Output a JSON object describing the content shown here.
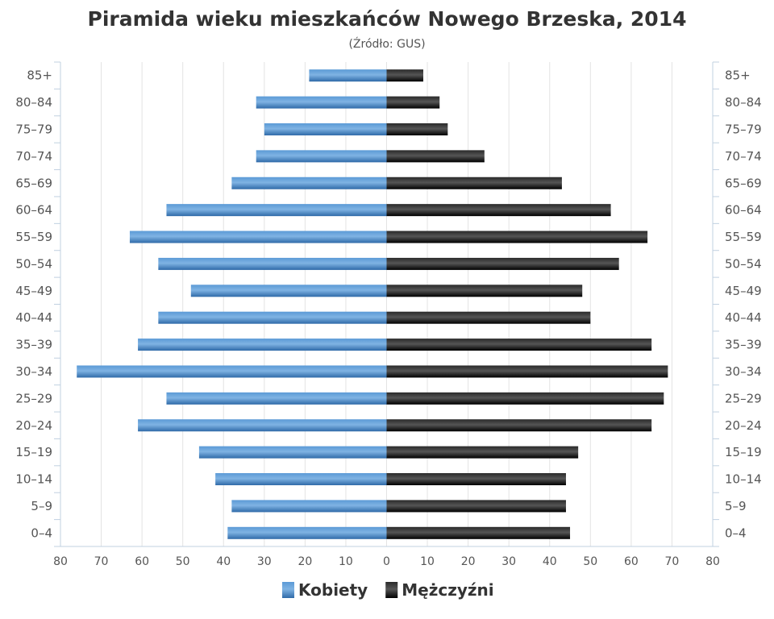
{
  "chart_data": {
    "type": "bar",
    "orientation": "horizontal",
    "layout": "population-pyramid",
    "title": "Piramida wieku mieszkańców Nowego Brzeska, 2014",
    "subtitle": "(Źródło: GUS)",
    "categories": [
      "85+",
      "80–84",
      "75–79",
      "70–74",
      "65–69",
      "60–64",
      "55–59",
      "50–54",
      "45–49",
      "40–44",
      "35–39",
      "30–34",
      "25–29",
      "20–24",
      "15–19",
      "10–14",
      "5–9",
      "0–4"
    ],
    "series": [
      {
        "name": "Kobiety",
        "color": "#3f7fc0",
        "side": "left",
        "values": [
          19,
          32,
          30,
          32,
          38,
          54,
          63,
          56,
          48,
          56,
          61,
          76,
          54,
          61,
          46,
          42,
          38,
          39
        ]
      },
      {
        "name": "Mężczyźni",
        "color": "#1a1a1a",
        "side": "right",
        "values": [
          9,
          13,
          15,
          24,
          43,
          55,
          64,
          57,
          48,
          50,
          65,
          69,
          68,
          65,
          47,
          44,
          44,
          45
        ]
      }
    ],
    "xlim": [
      -80,
      80
    ],
    "x_ticks": [
      80,
      70,
      60,
      50,
      40,
      30,
      20,
      10,
      0,
      10,
      20,
      30,
      40,
      50,
      60,
      70,
      80
    ],
    "grid": true,
    "legend": "bottom-center"
  }
}
